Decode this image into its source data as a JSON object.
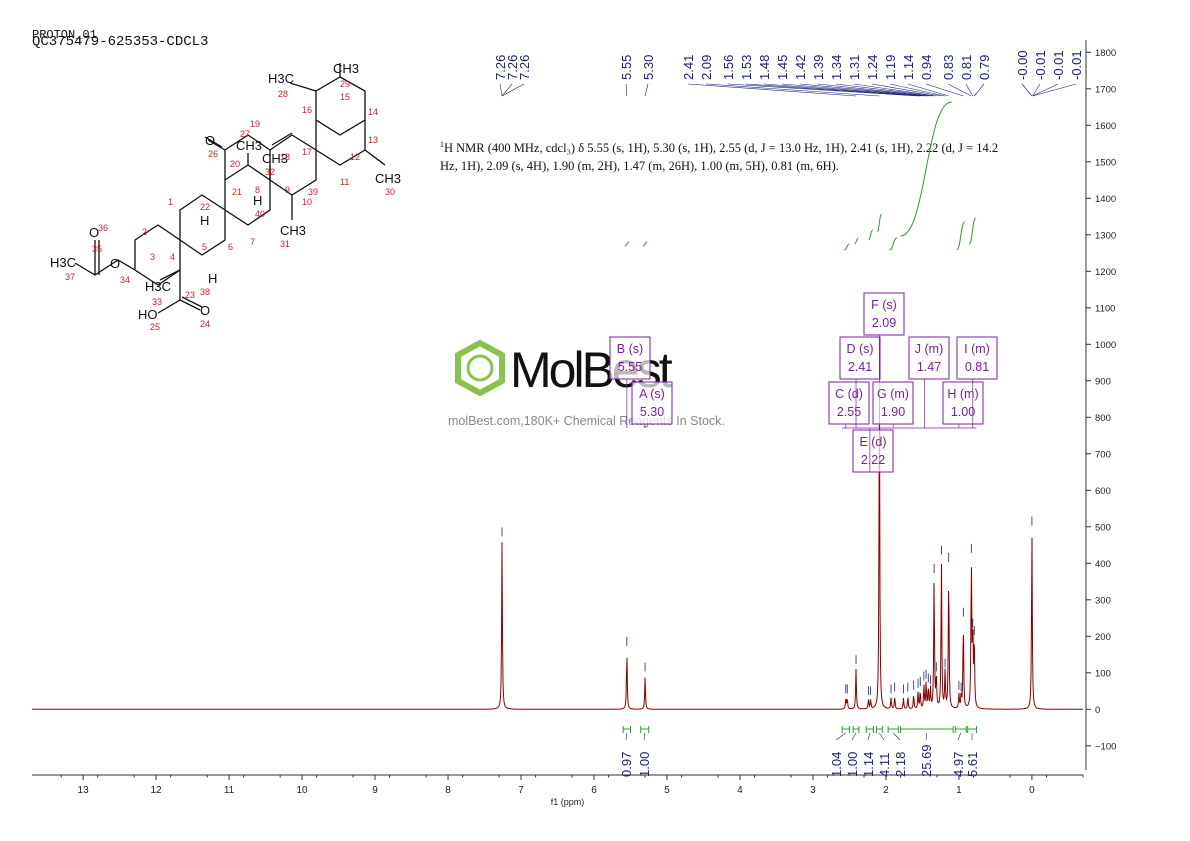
{
  "header": {
    "experiment": "PROTON_01",
    "sample": "QC375479-625353-CDCL3"
  },
  "nmr_summary": {
    "prefix": "1",
    "text": "H NMR (400 MHz, cdcl₃) δ 5.55 (s, 1H), 5.30 (s, 1H), 2.55 (d, J = 13.0 Hz, 1H), 2.41 (s, 1H), 2.22 (d, J = 14.2 Hz, 1H), 2.09 (s, 4H), 1.90 (m, 2H), 1.47 (m, 26H), 1.00 (m, 5H), 0.81 (m, 6H)."
  },
  "watermark": {
    "brand": "MolBest",
    "tagline": "molBest.com,180K+ Chemical Reagents In Stock."
  },
  "chart_data": {
    "type": "line",
    "xlabel": "f1 (ppm)",
    "x_reversed": true,
    "xlim": [
      13.7,
      -0.7
    ],
    "x_ticks": [
      13,
      12,
      11,
      10,
      9,
      8,
      7,
      6,
      5,
      4,
      3,
      2,
      1,
      0
    ],
    "ylim": [
      -180,
      1820
    ],
    "y_ticks": [
      -100,
      0,
      100,
      200,
      300,
      400,
      500,
      600,
      700,
      800,
      900,
      1000,
      1100,
      1200,
      1300,
      1400,
      1500,
      1600,
      1700,
      1800
    ],
    "y_tick_labels": [
      "−100",
      "0",
      "100",
      "200",
      "300",
      "400",
      "500",
      "600",
      "700",
      "800",
      "900",
      "1000",
      "1100",
      "1200",
      "1300",
      "1400",
      "1500",
      "1600",
      "1700",
      "1800"
    ],
    "peaks": [
      {
        "ppm": 7.26,
        "height": 460
      },
      {
        "ppm": 5.55,
        "height": 160
      },
      {
        "ppm": 5.3,
        "height": 90
      },
      {
        "ppm": 2.55,
        "height": 30
      },
      {
        "ppm": 2.53,
        "height": 30
      },
      {
        "ppm": 2.41,
        "height": 110
      },
      {
        "ppm": 2.24,
        "height": 25
      },
      {
        "ppm": 2.21,
        "height": 25
      },
      {
        "ppm": 2.09,
        "height": 930
      },
      {
        "ppm": 1.93,
        "height": 30
      },
      {
        "ppm": 1.88,
        "height": 35
      },
      {
        "ppm": 1.76,
        "height": 30
      },
      {
        "ppm": 1.7,
        "height": 35
      },
      {
        "ppm": 1.62,
        "height": 40
      },
      {
        "ppm": 1.56,
        "height": 45
      },
      {
        "ppm": 1.53,
        "height": 50
      },
      {
        "ppm": 1.48,
        "height": 65
      },
      {
        "ppm": 1.45,
        "height": 70
      },
      {
        "ppm": 1.42,
        "height": 60
      },
      {
        "ppm": 1.39,
        "height": 55
      },
      {
        "ppm": 1.34,
        "height": 360
      },
      {
        "ppm": 1.31,
        "height": 90
      },
      {
        "ppm": 1.24,
        "height": 410
      },
      {
        "ppm": 1.19,
        "height": 100
      },
      {
        "ppm": 1.14,
        "height": 390
      },
      {
        "ppm": 1.0,
        "height": 40
      },
      {
        "ppm": 0.97,
        "height": 35
      },
      {
        "ppm": 0.94,
        "height": 240
      },
      {
        "ppm": 0.83,
        "height": 415
      },
      {
        "ppm": 0.81,
        "height": 210
      },
      {
        "ppm": 0.79,
        "height": 190
      },
      {
        "ppm": 0.0,
        "height": 490
      }
    ],
    "peak_labels": [
      "7.26",
      "7.26",
      "7.26",
      "5.55",
      "5.30",
      "2.41",
      "2.09",
      "1.56",
      "1.53",
      "1.48",
      "1.45",
      "1.42",
      "1.39",
      "1.34",
      "1.31",
      "1.24",
      "1.19",
      "1.14",
      "0.94",
      "0.83",
      "0.81",
      "0.79",
      "-0.00",
      "-0.01",
      "-0.01",
      "-0.01"
    ],
    "multiplets": [
      {
        "label": "A (s)",
        "value": "5.30",
        "ppm": 5.3
      },
      {
        "label": "B (s)",
        "value": "5.55",
        "ppm": 5.55
      },
      {
        "label": "C (d)",
        "value": "2.55",
        "ppm": 2.55
      },
      {
        "label": "D (s)",
        "value": "2.41",
        "ppm": 2.41
      },
      {
        "label": "E (d)",
        "value": "2.22",
        "ppm": 2.22
      },
      {
        "label": "F (s)",
        "value": "2.09",
        "ppm": 2.09
      },
      {
        "label": "G (m)",
        "value": "1.90",
        "ppm": 1.9
      },
      {
        "label": "H (m)",
        "value": "1.00",
        "ppm": 1.0
      },
      {
        "label": "I (m)",
        "value": "0.81",
        "ppm": 0.81
      },
      {
        "label": "J (m)",
        "value": "1.47",
        "ppm": 1.47
      }
    ],
    "integrals": [
      {
        "value": "0.97",
        "from": 5.6,
        "to": 5.5
      },
      {
        "value": "1.00",
        "from": 5.36,
        "to": 5.25
      },
      {
        "value": "1.04",
        "from": 2.6,
        "to": 2.5
      },
      {
        "value": "1.00",
        "from": 2.45,
        "to": 2.37
      },
      {
        "value": "1.14",
        "from": 2.27,
        "to": 2.17
      },
      {
        "value": "4.11",
        "from": 2.13,
        "to": 2.05
      },
      {
        "value": "2.18",
        "from": 1.97,
        "to": 1.83
      },
      {
        "value": "25.69",
        "from": 1.8,
        "to": 1.08
      },
      {
        "value": "4.97",
        "from": 1.05,
        "to": 0.9
      },
      {
        "value": "5.61",
        "from": 0.88,
        "to": 0.76
      }
    ],
    "colors": {
      "spectrum": "#8b0000",
      "integral": "#2ca02c",
      "peak_label": "#1a237e",
      "multiplet": "#7b1fa2",
      "axis": "#333333"
    }
  },
  "structure": {
    "atom_labels": [
      "O",
      "26",
      "20",
      "19",
      "18",
      "17",
      "16",
      "15",
      "14",
      "13",
      "12",
      "11",
      "10",
      "9",
      "8",
      "21",
      "22",
      "1",
      "2",
      "3",
      "4",
      "5",
      "6",
      "7",
      "H",
      "H",
      "H",
      "O",
      "36",
      "35",
      "O",
      "34",
      "H3C",
      "37",
      "H3C",
      "33",
      "23",
      "HO",
      "25",
      "O",
      "24",
      "CH3",
      "29",
      "H3C",
      "28",
      "CH3",
      "30",
      "CH3",
      "27",
      "CH3",
      "32",
      "CH3",
      "31",
      "39",
      "40",
      "38"
    ]
  }
}
